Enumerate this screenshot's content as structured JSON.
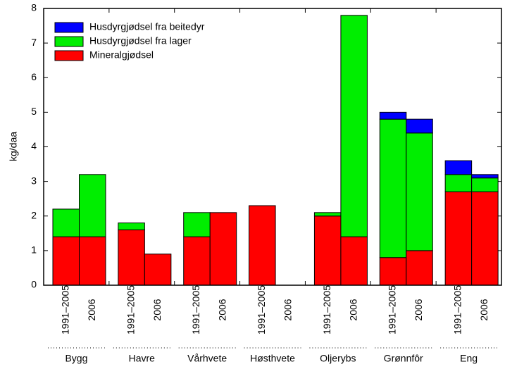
{
  "chart_data": {
    "type": "stacked_bar",
    "y_label": "kg/daa",
    "groups": [
      "Bygg",
      "Havre",
      "Vårhvete",
      "Høsthvete",
      "Oljerybs",
      "Grønnfôr",
      "Eng"
    ],
    "categories": [
      "1991–2005",
      "2006",
      "1991–2005",
      "2006",
      "1991–2005",
      "2006",
      "1991–2005",
      "2006",
      "1991–2005",
      "2006",
      "1991–2005",
      "2006",
      "1991–2005",
      "2006"
    ],
    "series": [
      {
        "name": "Husdyrgjødsel fra beitedyr",
        "color": "#0000ff",
        "values": [
          0,
          0,
          0,
          0,
          0,
          0,
          0,
          0,
          0,
          0,
          0.2,
          0.4,
          0.4,
          0.1
        ]
      },
      {
        "name": "Husdyrgjødsel fra lager",
        "color": "#00ee00",
        "values": [
          0.8,
          1.8,
          0.2,
          0,
          0.7,
          0,
          0,
          0,
          0.1,
          6.4,
          4.0,
          3.4,
          0.5,
          0.4
        ]
      },
      {
        "name": "Mineralgjødsel",
        "color": "#ff0000",
        "values": [
          1.4,
          1.4,
          1.6,
          0.9,
          1.4,
          2.1,
          2.3,
          0,
          2.0,
          1.4,
          0.8,
          1.0,
          2.7,
          2.7
        ]
      }
    ],
    "ylim": [
      0,
      8
    ],
    "yticks": [
      0,
      1,
      2,
      3,
      4,
      5,
      6,
      7,
      8
    ],
    "legend": "top-left"
  }
}
